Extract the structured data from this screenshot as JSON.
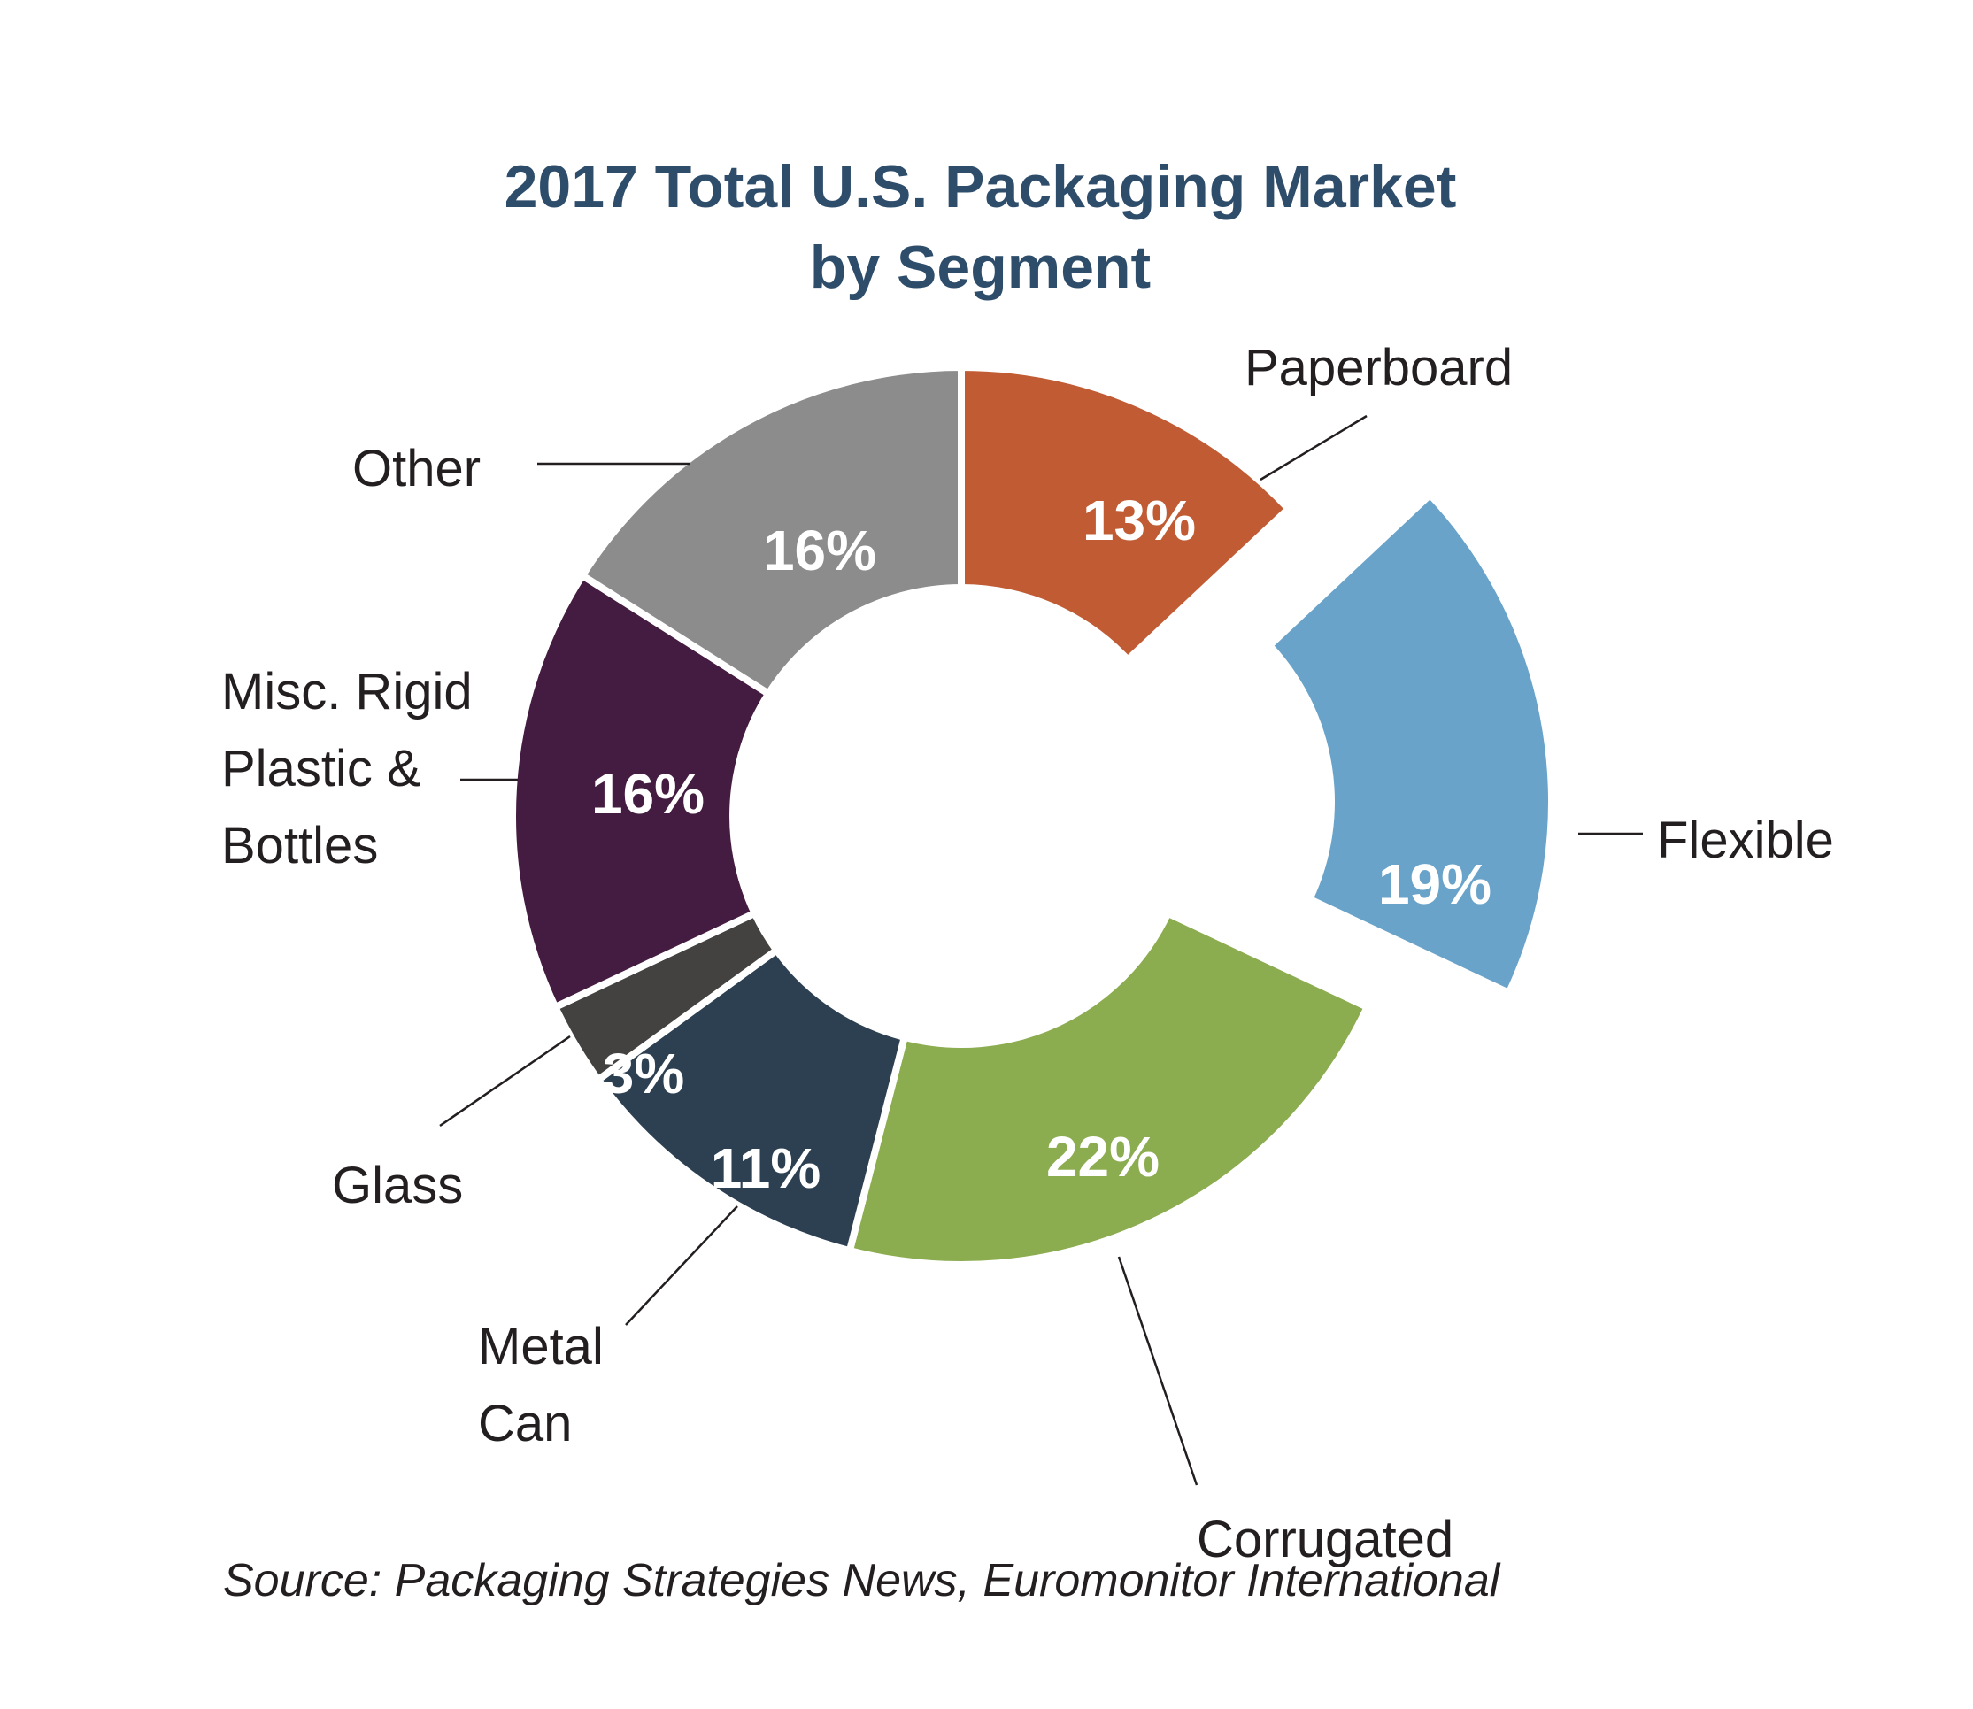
{
  "title": {
    "line1": "2017 Total U.S. Packaging Market",
    "line2": "by Segment"
  },
  "source": "Source: Packaging Strategies News, Euromonitor International",
  "colors": {
    "background": "#FFFFFF",
    "title": "#2E4D6B",
    "label_text": "#231F20",
    "leader_line": "#231F20",
    "value_label": "#FFFFFF"
  },
  "chart_data": {
    "type": "pie",
    "subtype": "donut",
    "title": "2017 Total U.S. Packaging Market by Segment",
    "units": "percent",
    "start_angle_deg": 0,
    "direction": "clockwise",
    "donut_hole_ratio": 0.51,
    "legend_position": "none",
    "callout_labels": true,
    "slices": [
      {
        "label": "Paperboard",
        "value": 13,
        "value_label": "13%",
        "color": "#C05B33",
        "exploded": false
      },
      {
        "label": "Flexible",
        "value": 19,
        "value_label": "19%",
        "color": "#69A3C9",
        "exploded": true
      },
      {
        "label": "Corrugated",
        "value": 22,
        "value_label": "22%",
        "color": "#8BAC4F",
        "exploded": false
      },
      {
        "label": "Metal Can",
        "value": 11,
        "value_label": "11%",
        "color": "#2D4052",
        "exploded": false
      },
      {
        "label": "Glass",
        "value": 3,
        "value_label": "3%",
        "color": "#434240",
        "exploded": false
      },
      {
        "label": "Misc. Rigid Plastic & Bottles",
        "value": 16,
        "value_label": "16%",
        "color": "#451C41",
        "exploded": false
      },
      {
        "label": "Other",
        "value": 16,
        "value_label": "16%",
        "color": "#8C8C8C",
        "exploded": false
      }
    ]
  }
}
